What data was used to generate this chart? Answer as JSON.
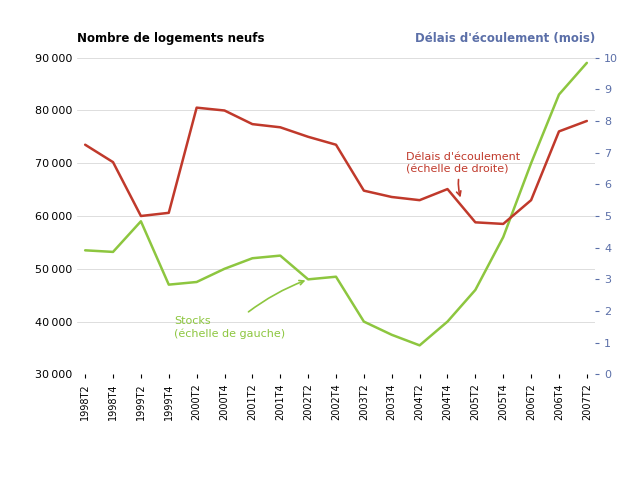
{
  "x_labels": [
    "1998T2",
    "1998T4",
    "1999T2",
    "1999T4",
    "2000T2",
    "2000T4",
    "2001T2",
    "2001T4",
    "2002T2",
    "2002T4",
    "2003T2",
    "2003T4",
    "2004T2",
    "2004T4",
    "2005T2",
    "2005T4",
    "2006T2",
    "2006T4",
    "2007T2"
  ],
  "stocks_y": [
    53500,
    53200,
    59000,
    47000,
    47500,
    50000,
    52000,
    52500,
    48000,
    48500,
    40000,
    37500,
    35500,
    40000,
    46000,
    56000,
    70000,
    83000,
    89000
  ],
  "delais_months": [
    7.25,
    6.7,
    5.0,
    5.1,
    8.42,
    8.33,
    7.9,
    7.8,
    7.5,
    7.25,
    5.8,
    5.6,
    5.5,
    5.85,
    4.8,
    4.75,
    5.5,
    7.67,
    8.0
  ],
  "stocks_color": "#8dc63f",
  "delais_color": "#c0392b",
  "right_tick_color": "#5b6fa8",
  "title_left": "Nombre de logements neufs",
  "title_right": "Délais d'écoulement (mois)",
  "ylim_left": [
    30000,
    90000
  ],
  "ylim_right": [
    0,
    10
  ],
  "yticks_left": [
    30000,
    40000,
    50000,
    60000,
    70000,
    80000,
    90000
  ],
  "yticks_right": [
    0,
    1,
    2,
    3,
    4,
    5,
    6,
    7,
    8,
    9,
    10
  ],
  "annotation_stocks": "Stocks\n(échelle de gauche)",
  "annotation_delais": "Délais d'écoulement\n(échelle de droite)",
  "bg_color": "#ffffff",
  "grid_color": "#d0d0d0",
  "fig_width": 6.4,
  "fig_height": 4.8,
  "dpi": 100
}
